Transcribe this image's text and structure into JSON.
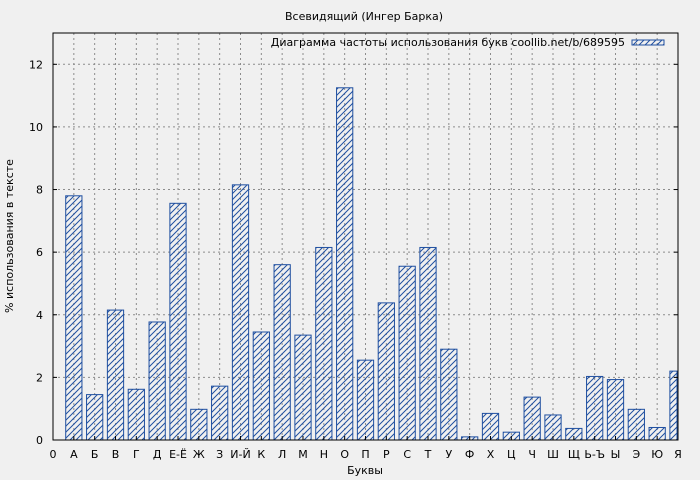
{
  "chart_data": {
    "type": "bar",
    "title": "Всевидящий (Ингер Барка)",
    "xlabel": "Буквы",
    "ylabel": "% использования в тексте",
    "series": [
      {
        "name": "Диаграмма частоты использования букв coollib.net/b/689595",
        "values": [
          7.8,
          1.45,
          4.15,
          1.62,
          3.77,
          7.56,
          0.98,
          1.72,
          8.15,
          3.45,
          5.6,
          3.35,
          6.15,
          11.25,
          2.55,
          4.38,
          5.55,
          6.15,
          2.9,
          0.1,
          0.85,
          0.25,
          1.37,
          0.8,
          0.37,
          2.03,
          1.93,
          0.98,
          0.4,
          2.2
        ]
      }
    ],
    "categories": [
      "А",
      "Б",
      "В",
      "Г",
      "Д",
      "Е-Ё",
      "Ж",
      "З",
      "И-Й",
      "К",
      "Л",
      "М",
      "Н",
      "О",
      "П",
      "Р",
      "С",
      "Т",
      "У",
      "Ф",
      "Х",
      "Ц",
      "Ч",
      "Ш",
      "Щ",
      "Ь-Ъ",
      "Ы",
      "Э",
      "Ю",
      "Я"
    ],
    "x_axis_start_label": "0",
    "ylim": [
      0,
      13
    ],
    "yticks": [
      0,
      2,
      4,
      6,
      8,
      10,
      12
    ],
    "grid": true,
    "legend_position": "top-right",
    "bar_color": "#1f4fa0",
    "background_color": "#f0f0f0"
  }
}
